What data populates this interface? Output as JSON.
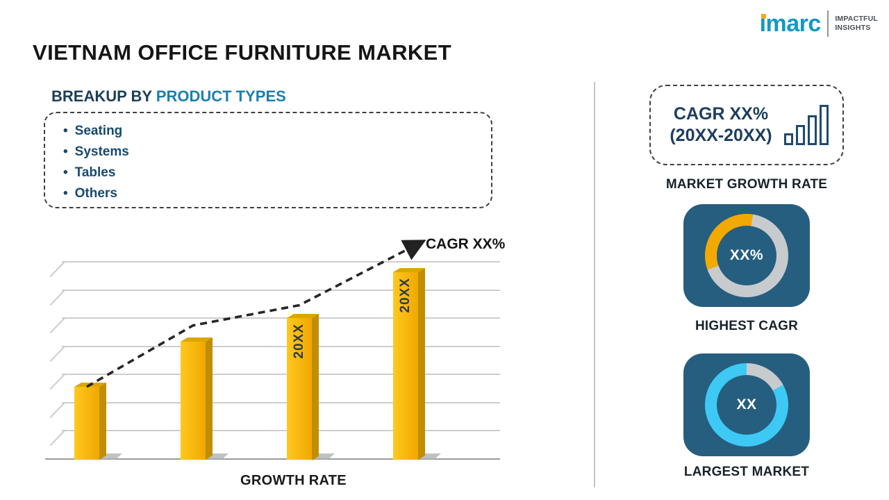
{
  "logo": {
    "brand": "imarc",
    "tagline": [
      "IMPACTFUL",
      "INSIGHTS"
    ]
  },
  "title": "VIETNAM OFFICE FURNITURE MARKET",
  "breakup": {
    "heading_prefix": "BREAKUP BY",
    "heading_highlight": "PRODUCT TYPES",
    "items": [
      "Seating",
      "Systems",
      "Tables",
      "Others"
    ]
  },
  "growth_chart": {
    "cagr_label": "CAGR XX%",
    "x_axis_label": "GROWTH RATE"
  },
  "right_panel": {
    "cagr_box_line1": "CAGR XX%",
    "cagr_box_line2": "(20XX-20XX)",
    "market_growth_label": "MARKET GROWTH RATE",
    "highest_cagr": {
      "center": "XX%",
      "label": "HIGHEST CAGR"
    },
    "largest_market": {
      "center": "XX",
      "label": "LARGEST MARKET"
    }
  },
  "colors": {
    "tile_navy": "#265E7F",
    "accent_teal": "#1B7FAE",
    "heading_navy": "#1C3E57",
    "bullet_navy": "#17496F",
    "bar_gold": "#F6B800",
    "donut_gray": "#C7CBCE",
    "donut_orange": "#F2A900",
    "donut_cyan": "#3EC9F5",
    "logo_teal": "#1299C6",
    "logo_orange": "#F5A623"
  },
  "chart_data": [
    {
      "type": "bar",
      "title": "GROWTH RATE",
      "categories": [
        "",
        "",
        "20XX",
        "20XX"
      ],
      "values": [
        37,
        60,
        72,
        95
      ],
      "ylim": [
        0,
        100
      ],
      "grid": true,
      "gridline_count": 8,
      "bar_color": "#F6B800",
      "trend": {
        "label": "CAGR XX%",
        "style": "dashed-arrow",
        "direction": "up"
      }
    },
    {
      "type": "pie",
      "title": "HIGHEST CAGR",
      "center_label": "XX%",
      "start_angle": 250,
      "slices": [
        {
          "name": "highlighted-segment",
          "value": 33,
          "color": "#F2A900"
        },
        {
          "name": "remainder",
          "value": 67,
          "color": "#C7CBCE"
        }
      ]
    },
    {
      "type": "pie",
      "title": "LARGEST MARKET",
      "center_label": "XX",
      "start_angle": 0,
      "slices": [
        {
          "name": "remainder",
          "value": 17,
          "color": "#C7CBCE"
        },
        {
          "name": "highlighted-segment",
          "value": 83,
          "color": "#3EC9F5"
        }
      ]
    }
  ]
}
